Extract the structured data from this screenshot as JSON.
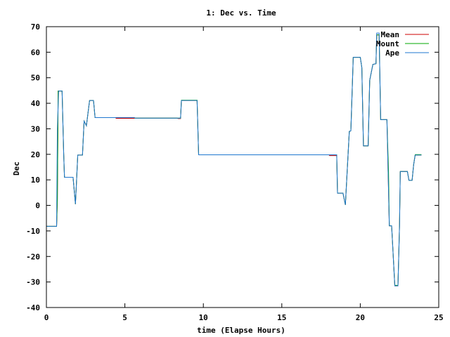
{
  "chart_data": {
    "type": "line",
    "title": "1: Dec vs. Time",
    "xlabel": "time (Elapse Hours)",
    "ylabel": "Dec",
    "xlim": [
      0,
      25
    ],
    "ylim": [
      -40,
      70
    ],
    "xticks": [
      "0",
      "5",
      "10",
      "15",
      "20",
      "25"
    ],
    "yticks": [
      "70",
      "60",
      "50",
      "40",
      "30",
      "20",
      "10",
      "0",
      "-10",
      "-20",
      "-30",
      "-40"
    ],
    "legend_position": "top-right",
    "grid": false,
    "series": [
      {
        "name": "Mean",
        "color": "#cc0000",
        "points": [
          [
            0,
            -8.2
          ],
          [
            0.65,
            -8.2
          ],
          [
            0.7,
            2
          ],
          [
            0.75,
            44.8
          ],
          [
            1.0,
            44.8
          ],
          [
            1.1,
            20
          ],
          [
            1.15,
            11
          ],
          [
            1.7,
            11
          ],
          [
            1.85,
            0.5
          ],
          [
            2.0,
            19.7
          ],
          [
            2.3,
            19.7
          ],
          [
            2.4,
            33
          ],
          [
            2.55,
            31.2
          ],
          [
            2.75,
            41.1
          ],
          [
            3.0,
            41.1
          ],
          [
            3.1,
            34.4
          ],
          [
            4.4,
            34.4
          ],
          [
            4.45,
            34.1
          ],
          [
            5.6,
            34.1
          ],
          [
            5.65,
            34.2
          ],
          [
            8.3,
            34.2
          ],
          [
            8.4,
            34
          ],
          [
            8.55,
            34
          ],
          [
            8.6,
            41.1
          ],
          [
            9.6,
            41.1
          ],
          [
            9.7,
            19.8
          ],
          [
            18.0,
            19.8
          ],
          [
            18.05,
            19.5
          ],
          [
            18.5,
            19.5
          ],
          [
            18.55,
            4.8
          ],
          [
            18.9,
            4.8
          ],
          [
            19.05,
            0.2
          ],
          [
            19.3,
            29
          ],
          [
            19.4,
            29.2
          ],
          [
            19.55,
            58
          ],
          [
            20.0,
            58
          ],
          [
            20.1,
            54
          ],
          [
            20.2,
            23.3
          ],
          [
            20.5,
            23.3
          ],
          [
            20.6,
            49
          ],
          [
            20.8,
            55.2
          ],
          [
            21.0,
            55.5
          ],
          [
            21.05,
            66.8
          ],
          [
            21.2,
            66.8
          ],
          [
            21.3,
            33.6
          ],
          [
            21.7,
            33.6
          ],
          [
            21.85,
            -8
          ],
          [
            22.0,
            -8
          ],
          [
            22.2,
            -31.5
          ],
          [
            22.4,
            -31.5
          ],
          [
            22.5,
            -8
          ],
          [
            22.55,
            13.3
          ],
          [
            23.0,
            13.3
          ],
          [
            23.1,
            9.8
          ],
          [
            23.3,
            9.8
          ],
          [
            23.4,
            16
          ],
          [
            23.5,
            19.7
          ],
          [
            23.9,
            19.7
          ]
        ]
      },
      {
        "name": "Mount",
        "color": "#00aa00",
        "points": [
          [
            0,
            -8.2
          ],
          [
            0.65,
            -8.2
          ],
          [
            0.7,
            2.5
          ],
          [
            0.75,
            44.8
          ],
          [
            1.0,
            44.8
          ],
          [
            1.1,
            20
          ],
          [
            1.15,
            11
          ],
          [
            1.7,
            11
          ],
          [
            1.85,
            0.5
          ],
          [
            2.0,
            19.7
          ],
          [
            2.3,
            19.7
          ],
          [
            2.4,
            33
          ],
          [
            2.55,
            31.2
          ],
          [
            2.75,
            41.1
          ],
          [
            3.0,
            41.1
          ],
          [
            3.1,
            34.4
          ],
          [
            5.6,
            34.4
          ],
          [
            5.65,
            34.2
          ],
          [
            8.55,
            34.2
          ],
          [
            8.6,
            41.2
          ],
          [
            9.6,
            41.2
          ],
          [
            9.7,
            19.8
          ],
          [
            18.5,
            19.8
          ],
          [
            18.55,
            4.8
          ],
          [
            18.9,
            4.8
          ],
          [
            19.05,
            0.2
          ],
          [
            19.3,
            29
          ],
          [
            19.4,
            29.2
          ],
          [
            19.55,
            58
          ],
          [
            20.0,
            58
          ],
          [
            20.1,
            54
          ],
          [
            20.2,
            23.3
          ],
          [
            20.5,
            23.3
          ],
          [
            20.6,
            49
          ],
          [
            20.8,
            55.2
          ],
          [
            21.0,
            55.5
          ],
          [
            21.05,
            66.8
          ],
          [
            21.2,
            66.8
          ],
          [
            21.3,
            33.6
          ],
          [
            21.7,
            33.6
          ],
          [
            21.8,
            13
          ],
          [
            21.85,
            -8
          ],
          [
            22.0,
            -8
          ],
          [
            22.2,
            -31.3
          ],
          [
            22.4,
            -31.3
          ],
          [
            22.5,
            -8
          ],
          [
            22.55,
            13.3
          ],
          [
            23.0,
            13.3
          ],
          [
            23.1,
            9.8
          ],
          [
            23.3,
            9.8
          ],
          [
            23.4,
            16
          ],
          [
            23.5,
            19.9
          ],
          [
            23.9,
            19.9
          ]
        ]
      },
      {
        "name": "Ape",
        "color": "#1f77d0",
        "points": [
          [
            0,
            -8.2
          ],
          [
            0.65,
            -8.2
          ],
          [
            0.7,
            30
          ],
          [
            0.78,
            44.8
          ],
          [
            1.0,
            44.8
          ],
          [
            1.1,
            20
          ],
          [
            1.15,
            11
          ],
          [
            1.7,
            11
          ],
          [
            1.85,
            0.5
          ],
          [
            2.0,
            19.7
          ],
          [
            2.3,
            19.7
          ],
          [
            2.4,
            33
          ],
          [
            2.55,
            31.2
          ],
          [
            2.75,
            41.1
          ],
          [
            3.0,
            41.1
          ],
          [
            3.1,
            34.4
          ],
          [
            5.6,
            34.4
          ],
          [
            5.65,
            34.2
          ],
          [
            8.55,
            34.2
          ],
          [
            8.6,
            41.1
          ],
          [
            9.6,
            41.1
          ],
          [
            9.7,
            19.8
          ],
          [
            18.5,
            19.8
          ],
          [
            18.55,
            4.8
          ],
          [
            18.9,
            4.8
          ],
          [
            19.05,
            0.2
          ],
          [
            19.3,
            29
          ],
          [
            19.4,
            29.2
          ],
          [
            19.55,
            58
          ],
          [
            20.0,
            58
          ],
          [
            20.1,
            54
          ],
          [
            20.2,
            23.3
          ],
          [
            20.5,
            23.3
          ],
          [
            20.6,
            49
          ],
          [
            20.8,
            55.2
          ],
          [
            21.0,
            55.5
          ],
          [
            21.05,
            67.5
          ],
          [
            21.2,
            67.5
          ],
          [
            21.3,
            33.6
          ],
          [
            21.7,
            33.6
          ],
          [
            21.85,
            -8
          ],
          [
            22.0,
            -8
          ],
          [
            22.2,
            -31.5
          ],
          [
            22.4,
            -31.5
          ],
          [
            22.5,
            -8
          ],
          [
            22.55,
            13.3
          ],
          [
            23.0,
            13.3
          ],
          [
            23.1,
            9.8
          ],
          [
            23.3,
            9.8
          ],
          [
            23.4,
            16
          ],
          [
            23.5,
            19.7
          ],
          [
            23.9,
            19.7
          ]
        ]
      }
    ]
  }
}
